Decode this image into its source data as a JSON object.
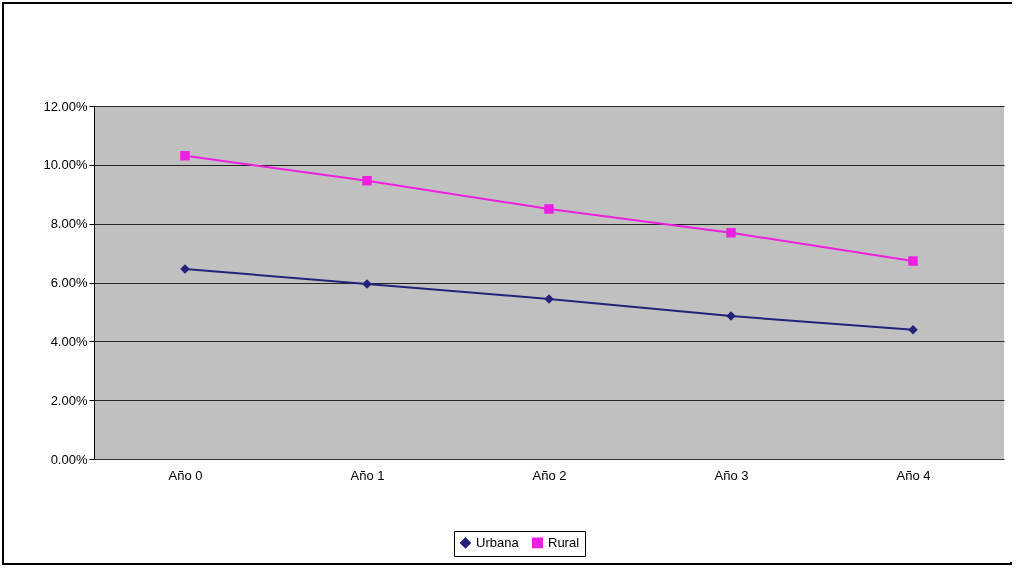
{
  "chart_data": {
    "type": "line",
    "categories": [
      "Año 0",
      "Año 1",
      "Año 2",
      "Año 3",
      "Año 4"
    ],
    "series": [
      {
        "name": "Urbana",
        "color": "#23237a",
        "marker": "diamond",
        "values": [
          6.46,
          5.95,
          5.44,
          4.86,
          4.39
        ]
      },
      {
        "name": "Rural",
        "color": "#ee1fe0",
        "marker": "square",
        "values": [
          10.31,
          9.46,
          8.5,
          7.69,
          6.73
        ]
      }
    ],
    "ylim": [
      0,
      12
    ],
    "yticks": [
      {
        "value": 0,
        "label": "0.00%"
      },
      {
        "value": 2,
        "label": "2.00%"
      },
      {
        "value": 4,
        "label": "4.00%"
      },
      {
        "value": 6,
        "label": "6.00%"
      },
      {
        "value": 8,
        "label": "8.00%"
      },
      {
        "value": 10,
        "label": "10.00%"
      },
      {
        "value": 12,
        "label": "12.00%"
      }
    ],
    "grid": "y",
    "legend": "bottom"
  }
}
